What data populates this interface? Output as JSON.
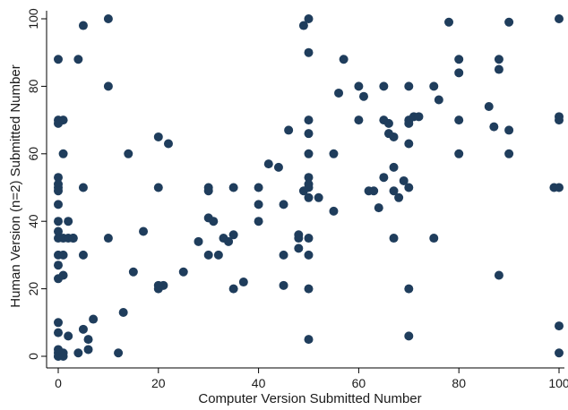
{
  "chart_data": {
    "type": "scatter",
    "title": "",
    "xlabel": "Computer Version Submitted Number",
    "ylabel": "Human Version (n=2) Submitted Number",
    "xlim": [
      0,
      100
    ],
    "ylim": [
      0,
      100
    ],
    "xticks": [
      0,
      20,
      40,
      60,
      80,
      100
    ],
    "yticks": [
      0,
      20,
      40,
      60,
      80,
      100
    ],
    "grid": false,
    "legend": "none",
    "marker_color": "#1f3d5c",
    "points": [
      [
        0,
        88
      ],
      [
        0,
        70
      ],
      [
        0,
        69
      ],
      [
        0,
        53
      ],
      [
        0,
        51
      ],
      [
        0,
        50
      ],
      [
        0,
        49
      ],
      [
        0,
        45
      ],
      [
        0,
        40
      ],
      [
        0,
        37
      ],
      [
        0,
        35
      ],
      [
        0,
        30
      ],
      [
        0,
        27
      ],
      [
        0,
        23
      ],
      [
        0,
        10
      ],
      [
        0,
        7
      ],
      [
        0,
        2
      ],
      [
        0,
        1
      ],
      [
        0,
        0
      ],
      [
        0,
        0
      ],
      [
        1,
        70
      ],
      [
        1,
        60
      ],
      [
        1,
        35
      ],
      [
        1,
        30
      ],
      [
        1,
        24
      ],
      [
        1,
        1
      ],
      [
        1,
        0
      ],
      [
        2,
        40
      ],
      [
        2,
        35
      ],
      [
        2,
        6
      ],
      [
        3,
        35
      ],
      [
        3,
        35
      ],
      [
        4,
        88
      ],
      [
        4,
        1
      ],
      [
        5,
        98
      ],
      [
        5,
        50
      ],
      [
        5,
        30
      ],
      [
        5,
        8
      ],
      [
        6,
        5
      ],
      [
        6,
        2
      ],
      [
        7,
        11
      ],
      [
        10,
        100
      ],
      [
        10,
        80
      ],
      [
        10,
        35
      ],
      [
        12,
        1
      ],
      [
        13,
        13
      ],
      [
        14,
        60
      ],
      [
        15,
        25
      ],
      [
        17,
        37
      ],
      [
        20,
        65
      ],
      [
        20,
        50
      ],
      [
        20,
        21
      ],
      [
        20,
        20
      ],
      [
        21,
        21
      ],
      [
        22,
        63
      ],
      [
        25,
        25
      ],
      [
        28,
        34
      ],
      [
        30,
        50
      ],
      [
        30,
        49
      ],
      [
        30,
        41
      ],
      [
        30,
        30
      ],
      [
        31,
        40
      ],
      [
        32,
        30
      ],
      [
        33,
        35
      ],
      [
        34,
        34
      ],
      [
        35,
        50
      ],
      [
        35,
        36
      ],
      [
        35,
        20
      ],
      [
        37,
        22
      ],
      [
        40,
        50
      ],
      [
        40,
        45
      ],
      [
        40,
        40
      ],
      [
        42,
        57
      ],
      [
        44,
        56
      ],
      [
        45,
        45
      ],
      [
        45,
        30
      ],
      [
        45,
        21
      ],
      [
        46,
        67
      ],
      [
        48,
        36
      ],
      [
        48,
        35
      ],
      [
        48,
        32
      ],
      [
        49,
        98
      ],
      [
        49,
        49
      ],
      [
        50,
        100
      ],
      [
        50,
        90
      ],
      [
        50,
        70
      ],
      [
        50,
        66
      ],
      [
        50,
        60
      ],
      [
        50,
        53
      ],
      [
        50,
        51
      ],
      [
        50,
        50
      ],
      [
        50,
        47
      ],
      [
        50,
        35
      ],
      [
        50,
        30
      ],
      [
        50,
        20
      ],
      [
        50,
        5
      ],
      [
        52,
        47
      ],
      [
        55,
        60
      ],
      [
        55,
        43
      ],
      [
        56,
        78
      ],
      [
        57,
        88
      ],
      [
        60,
        80
      ],
      [
        60,
        70
      ],
      [
        61,
        77
      ],
      [
        62,
        49
      ],
      [
        63,
        49
      ],
      [
        64,
        44
      ],
      [
        65,
        80
      ],
      [
        65,
        70
      ],
      [
        65,
        53
      ],
      [
        66,
        69
      ],
      [
        66,
        66
      ],
      [
        67,
        65
      ],
      [
        67,
        56
      ],
      [
        67,
        49
      ],
      [
        67,
        35
      ],
      [
        68,
        47
      ],
      [
        69,
        52
      ],
      [
        70,
        80
      ],
      [
        70,
        70
      ],
      [
        70,
        69
      ],
      [
        70,
        63
      ],
      [
        70,
        50
      ],
      [
        70,
        20
      ],
      [
        70,
        6
      ],
      [
        71,
        71
      ],
      [
        72,
        71
      ],
      [
        75,
        80
      ],
      [
        75,
        35
      ],
      [
        76,
        76
      ],
      [
        78,
        99
      ],
      [
        80,
        88
      ],
      [
        80,
        84
      ],
      [
        80,
        70
      ],
      [
        80,
        60
      ],
      [
        86,
        74
      ],
      [
        87,
        68
      ],
      [
        88,
        88
      ],
      [
        88,
        85
      ],
      [
        88,
        24
      ],
      [
        90,
        99
      ],
      [
        90,
        67
      ],
      [
        90,
        60
      ],
      [
        99,
        50
      ],
      [
        100,
        100
      ],
      [
        100,
        71
      ],
      [
        100,
        70
      ],
      [
        100,
        50
      ],
      [
        100,
        9
      ],
      [
        100,
        1
      ]
    ]
  }
}
